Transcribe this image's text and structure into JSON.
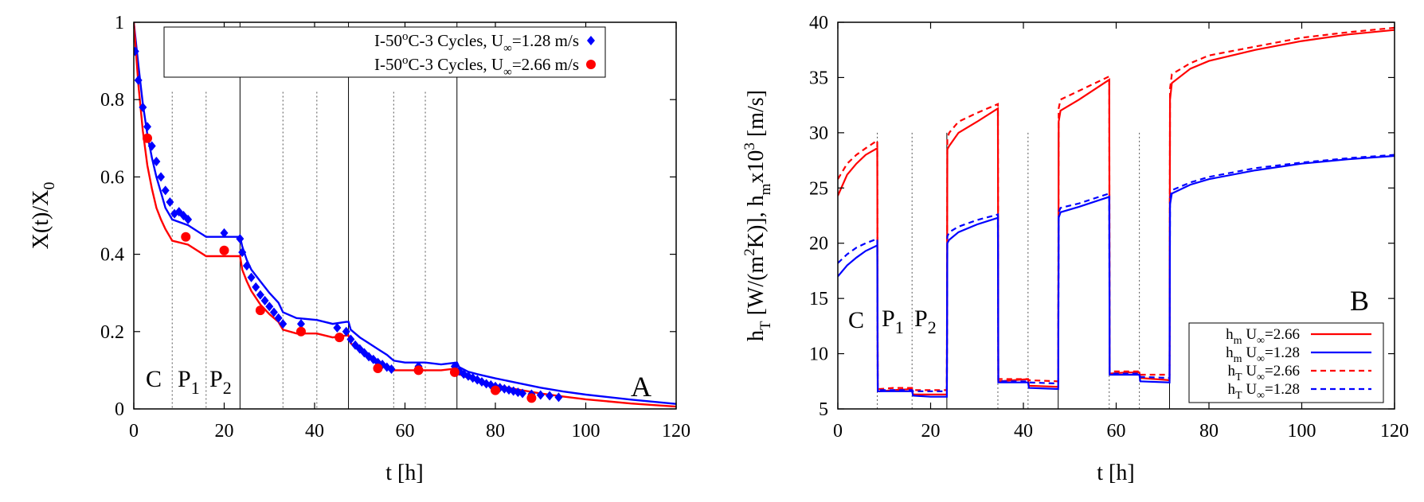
{
  "chart_data": [
    {
      "type": "line+scatter",
      "panel_label": "A",
      "xlabel": "t [h]",
      "ylabel": "X(t)/X",
      "ylabel_sub": "0",
      "xlim": [
        0,
        120
      ],
      "ylim": [
        0,
        1
      ],
      "xticks": [
        0,
        20,
        40,
        60,
        80,
        100,
        120
      ],
      "yticks": [
        0,
        0.2,
        0.4,
        0.6,
        0.8,
        1
      ],
      "region_labels": [
        "C",
        "P",
        "1",
        "P",
        "2"
      ],
      "solid_vlines": [
        23.5,
        47.5,
        71.5
      ],
      "dotted_vlines": [
        8.5,
        16,
        33,
        40.5,
        57.5,
        64.5
      ],
      "legend": [
        {
          "pre": "I-50",
          "sup": "o",
          "mid": "C-3 Cycles, U",
          "sub": "∞",
          "post": "=1.28 m/s",
          "color": "#0000ff",
          "marker": "diamond"
        },
        {
          "pre": "I-50",
          "sup": "o",
          "mid": "C-3 Cycles, U",
          "sub": "∞",
          "post": "=2.66 m/s",
          "color": "#ff0000",
          "marker": "circle"
        }
      ],
      "lines": [
        {
          "name": "model U=1.28",
          "color": "#0000ff",
          "x": [
            0,
            1,
            2,
            3,
            4,
            5,
            6,
            7,
            8,
            8.5,
            12,
            16,
            20,
            23.5,
            24,
            25,
            26,
            28,
            30,
            32,
            33,
            36,
            40.5,
            44,
            47,
            47.5,
            48,
            50,
            52,
            54,
            56,
            57.5,
            60,
            64.5,
            68,
            71.5,
            72,
            74,
            76,
            80,
            85,
            90,
            95,
            100,
            110,
            120
          ],
          "y": [
            1.0,
            0.89,
            0.79,
            0.71,
            0.65,
            0.6,
            0.56,
            0.52,
            0.5,
            0.49,
            0.475,
            0.445,
            0.445,
            0.445,
            0.42,
            0.385,
            0.36,
            0.33,
            0.3,
            0.275,
            0.25,
            0.235,
            0.23,
            0.22,
            0.225,
            0.225,
            0.205,
            0.185,
            0.17,
            0.155,
            0.14,
            0.125,
            0.12,
            0.12,
            0.115,
            0.12,
            0.108,
            0.096,
            0.09,
            0.079,
            0.067,
            0.055,
            0.045,
            0.037,
            0.024,
            0.013
          ]
        },
        {
          "name": "model U=2.66",
          "color": "#ff0000",
          "x": [
            0,
            1,
            2,
            3,
            4,
            5,
            6,
            7,
            8,
            8.5,
            12,
            16,
            20,
            23.5,
            24,
            25,
            26,
            28,
            30,
            32,
            33,
            36,
            40.5,
            44,
            47,
            47.5,
            48,
            50,
            52,
            54,
            56,
            57.5,
            60,
            64.5,
            68,
            71.5,
            72,
            74,
            76,
            80,
            85,
            90,
            95,
            100,
            110,
            120
          ],
          "y": [
            1.0,
            0.84,
            0.72,
            0.63,
            0.57,
            0.52,
            0.49,
            0.465,
            0.445,
            0.435,
            0.425,
            0.395,
            0.395,
            0.395,
            0.36,
            0.33,
            0.305,
            0.27,
            0.245,
            0.225,
            0.205,
            0.195,
            0.195,
            0.185,
            0.19,
            0.19,
            0.17,
            0.15,
            0.135,
            0.12,
            0.11,
            0.1,
            0.1,
            0.1,
            0.1,
            0.105,
            0.09,
            0.08,
            0.072,
            0.061,
            0.05,
            0.04,
            0.032,
            0.025,
            0.014,
            0.006
          ]
        }
      ],
      "series": [
        {
          "name": "I-50oC-3 Cycles, U∞=1.28 m/s",
          "color": "#0000ff",
          "marker": "diamond",
          "x": [
            0.3,
            1,
            2,
            3,
            4,
            5,
            6,
            7,
            8,
            9,
            10,
            11,
            12,
            20,
            23.5,
            24,
            25,
            26,
            27,
            28,
            29,
            30,
            31,
            32,
            33,
            37,
            45,
            47,
            48,
            49,
            50,
            51,
            52,
            53,
            54,
            55,
            56,
            57,
            63,
            71,
            72,
            73,
            74,
            75,
            76,
            77,
            78,
            79,
            80,
            81,
            82,
            83,
            84,
            85,
            86,
            88,
            90,
            92,
            94
          ],
          "y": [
            0.925,
            0.85,
            0.78,
            0.73,
            0.68,
            0.64,
            0.6,
            0.565,
            0.535,
            0.505,
            0.51,
            0.5,
            0.49,
            0.455,
            0.44,
            0.405,
            0.37,
            0.34,
            0.315,
            0.295,
            0.28,
            0.265,
            0.25,
            0.235,
            0.22,
            0.22,
            0.21,
            0.2,
            0.18,
            0.165,
            0.155,
            0.145,
            0.135,
            0.128,
            0.12,
            0.115,
            0.108,
            0.103,
            0.11,
            0.11,
            0.098,
            0.09,
            0.085,
            0.08,
            0.075,
            0.07,
            0.065,
            0.062,
            0.058,
            0.055,
            0.052,
            0.049,
            0.046,
            0.043,
            0.04,
            0.038,
            0.036,
            0.034,
            0.03
          ]
        },
        {
          "name": "I-50oC-3 Cycles, U∞=2.66 m/s",
          "color": "#ff0000",
          "marker": "circle",
          "x": [
            3,
            11.5,
            20,
            28,
            37,
            45.5,
            54,
            63,
            71,
            80,
            88
          ],
          "y": [
            0.7,
            0.445,
            0.41,
            0.255,
            0.2,
            0.185,
            0.105,
            0.1,
            0.095,
            0.048,
            0.028
          ]
        }
      ]
    },
    {
      "type": "line",
      "panel_label": "B",
      "xlabel": "t [h]",
      "ylabel_parts": [
        {
          "t": "h",
          "s": "base"
        },
        {
          "t": "T",
          "s": "sub"
        },
        {
          "t": " [W/(m",
          "s": "base"
        },
        {
          "t": "2",
          "s": "sup"
        },
        {
          "t": "K)], h",
          "s": "base"
        },
        {
          "t": "m",
          "s": "sub"
        },
        {
          "t": "x10",
          "s": "base"
        },
        {
          "t": "3",
          "s": "sup"
        },
        {
          "t": " [m/s]",
          "s": "base"
        }
      ],
      "xlim": [
        0,
        120
      ],
      "ylim": [
        5,
        40
      ],
      "xticks": [
        0,
        20,
        40,
        60,
        80,
        100,
        120
      ],
      "yticks": [
        5,
        10,
        15,
        20,
        25,
        30,
        35,
        40
      ],
      "region_labels": [
        "C",
        "P",
        "1",
        "P",
        "2"
      ],
      "solid_vlines": [
        23.5,
        47.5,
        71.5
      ],
      "dotted_vlines": [
        8.5,
        16,
        34.5,
        41,
        58.5,
        65
      ],
      "legend": [
        {
          "base": "h",
          "sub": "m",
          "rest": " U",
          "sub2": "∞",
          "post": "=2.66",
          "color": "#ff0000",
          "dash": false
        },
        {
          "base": "h",
          "sub": "m",
          "rest": " U",
          "sub2": "∞",
          "post": "=1.28",
          "color": "#0000ff",
          "dash": false
        },
        {
          "base": "h",
          "sub": "T",
          "rest": " U",
          "sub2": "∞",
          "post": "=2.66",
          "color": "#ff0000",
          "dash": true
        },
        {
          "base": "h",
          "sub": "T",
          "rest": " U",
          "sub2": "∞",
          "post": "=1.28",
          "color": "#0000ff",
          "dash": true
        }
      ],
      "series": [
        {
          "name": "hm U∞=2.66",
          "color": "#ff0000",
          "dash": false,
          "x": [
            0,
            2,
            4,
            6,
            8.5,
            8.6,
            9,
            12,
            16,
            16.2,
            20,
            23.5,
            23.6,
            24,
            26,
            30,
            34.5,
            34.6,
            38,
            41,
            41.2,
            47.5,
            47.6,
            48,
            52,
            58.5,
            58.6,
            62,
            65,
            65.2,
            71.5,
            71.6,
            72,
            76,
            80,
            90,
            100,
            110,
            120
          ],
          "y": [
            24.3,
            26.2,
            27.2,
            28.0,
            28.6,
            6.6,
            6.6,
            6.7,
            6.8,
            6.3,
            6.3,
            6.3,
            28.5,
            28.8,
            30.0,
            31.0,
            32.2,
            7.5,
            7.6,
            7.7,
            7.1,
            7.0,
            31.0,
            32.0,
            33.0,
            34.8,
            8.2,
            8.3,
            8.3,
            7.8,
            7.6,
            33.0,
            34.5,
            35.8,
            36.5,
            37.5,
            38.3,
            38.9,
            39.3
          ]
        },
        {
          "name": "hT U∞=2.66",
          "color": "#ff0000",
          "dash": true,
          "x": [
            0,
            2,
            4,
            6,
            8.5,
            8.6,
            9,
            12,
            16,
            16.2,
            20,
            23.5,
            23.6,
            24,
            26,
            30,
            34.5,
            34.6,
            38,
            41,
            41.2,
            47.5,
            47.6,
            48,
            52,
            58.5,
            58.6,
            62,
            65,
            65.2,
            71.5,
            71.6,
            72,
            76,
            80,
            90,
            100,
            110,
            120
          ],
          "y": [
            25.8,
            27.2,
            28.0,
            28.6,
            29.3,
            6.8,
            6.8,
            6.9,
            6.9,
            6.7,
            6.7,
            6.7,
            29.5,
            30.0,
            31.0,
            31.8,
            32.6,
            7.7,
            7.7,
            7.7,
            7.6,
            7.5,
            32.2,
            33.0,
            33.8,
            35.1,
            8.4,
            8.4,
            8.4,
            8.1,
            8.1,
            34.0,
            35.3,
            36.3,
            37.0,
            37.8,
            38.6,
            39.1,
            39.5
          ]
        },
        {
          "name": "hm U∞=1.28",
          "color": "#0000ff",
          "dash": false,
          "x": [
            0,
            2,
            4,
            6,
            8.5,
            8.6,
            9,
            12,
            16,
            16.2,
            20,
            23.5,
            23.6,
            24,
            26,
            30,
            34.5,
            34.6,
            38,
            41,
            41.2,
            47.5,
            47.6,
            48,
            52,
            58.5,
            58.6,
            62,
            65,
            65.2,
            71.5,
            71.6,
            72,
            76,
            80,
            90,
            100,
            110,
            120
          ],
          "y": [
            17.0,
            18.0,
            18.7,
            19.3,
            19.8,
            6.6,
            6.6,
            6.6,
            6.6,
            6.2,
            6.1,
            6.1,
            20.0,
            20.3,
            21.0,
            21.7,
            22.3,
            7.4,
            7.4,
            7.4,
            6.9,
            6.8,
            22.3,
            22.8,
            23.3,
            24.2,
            8.1,
            8.1,
            8.1,
            7.5,
            7.4,
            23.5,
            24.5,
            25.3,
            25.8,
            26.6,
            27.2,
            27.6,
            27.9
          ]
        },
        {
          "name": "hT U∞=1.28",
          "color": "#0000ff",
          "dash": true,
          "x": [
            0,
            2,
            4,
            6,
            8.5,
            8.6,
            9,
            12,
            16,
            16.2,
            20,
            23.5,
            23.6,
            24,
            26,
            30,
            34.5,
            34.6,
            38,
            41,
            41.2,
            47.5,
            47.6,
            48,
            52,
            58.5,
            58.6,
            62,
            65,
            65.2,
            71.5,
            71.6,
            72,
            76,
            80,
            90,
            100,
            110,
            120
          ],
          "y": [
            18.2,
            19.0,
            19.6,
            20.0,
            20.4,
            6.7,
            6.7,
            6.7,
            6.7,
            6.6,
            6.6,
            6.6,
            20.6,
            21.0,
            21.5,
            22.1,
            22.6,
            7.5,
            7.5,
            7.5,
            7.4,
            7.3,
            22.8,
            23.2,
            23.6,
            24.5,
            8.2,
            8.2,
            8.2,
            7.9,
            7.8,
            24.0,
            24.8,
            25.5,
            26.0,
            26.8,
            27.3,
            27.7,
            28.0
          ]
        }
      ]
    }
  ]
}
